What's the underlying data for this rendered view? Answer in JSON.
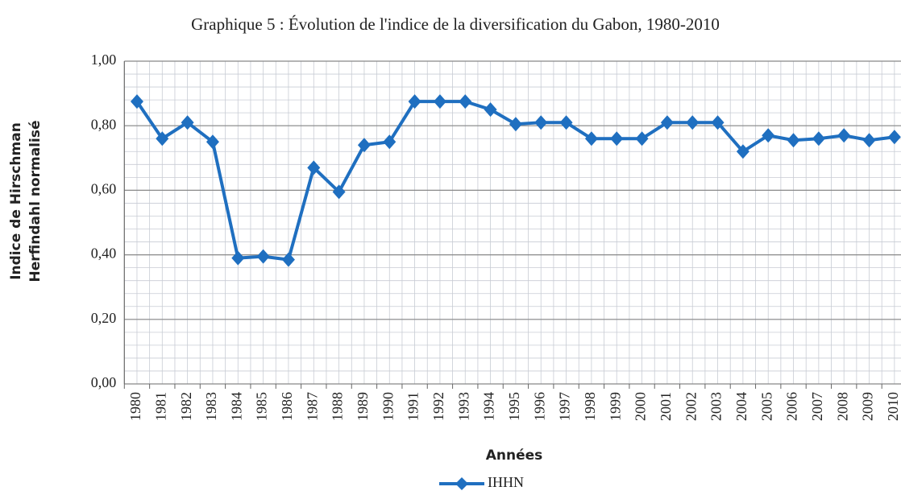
{
  "chart_data": {
    "type": "line",
    "title": "Graphique 5 : Évolution de l'indice de la diversification du Gabon, 1980-2010",
    "xlabel": "Années",
    "ylabel": [
      "Indice de Hirschman",
      "Herfindahl normalisé"
    ],
    "categories": [
      "1980",
      "1981",
      "1982",
      "1983",
      "1984",
      "1985",
      "1986",
      "1987",
      "1988",
      "1989",
      "1990",
      "1991",
      "1992",
      "1993",
      "1994",
      "1995",
      "1996",
      "1997",
      "1998",
      "1999",
      "2000",
      "2001",
      "2002",
      "2003",
      "2004",
      "2005",
      "2006",
      "2007",
      "2008",
      "2009",
      "2010"
    ],
    "series": [
      {
        "name": "IHHN",
        "color": "#1f6fc0",
        "values": [
          0.875,
          0.76,
          0.81,
          0.75,
          0.39,
          0.395,
          0.385,
          0.67,
          0.595,
          0.74,
          0.75,
          0.875,
          0.875,
          0.875,
          0.85,
          0.805,
          0.81,
          0.81,
          0.76,
          0.76,
          0.76,
          0.81,
          0.81,
          0.81,
          0.72,
          0.77,
          0.755,
          0.76,
          0.77,
          0.755,
          0.765
        ]
      }
    ],
    "ylim": [
      0,
      1
    ],
    "yticks": [
      {
        "value": 0,
        "label": "0,00"
      },
      {
        "value": 0.2,
        "label": "0,20"
      },
      {
        "value": 0.4,
        "label": "0,40"
      },
      {
        "value": 0.6,
        "label": "0,60"
      },
      {
        "value": 0.8,
        "label": "0,80"
      },
      {
        "value": 1,
        "label": "1,00"
      }
    ],
    "grid": true,
    "legend": "bottom"
  }
}
